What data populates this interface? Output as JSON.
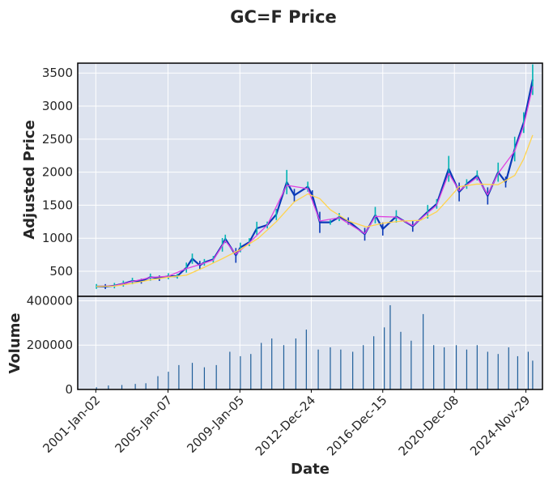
{
  "chart_data": {
    "type": "candlestick",
    "title": "GC=F Price",
    "xlabel": "Date",
    "price_panel": {
      "ylabel": "Adjusted Price",
      "yticks": [
        500,
        1000,
        1500,
        2000,
        2500,
        3000,
        3500
      ],
      "ylim": [
        120,
        3650
      ],
      "grid": true,
      "series": [
        {
          "kind": "candles",
          "color_up": "#00b3b3",
          "color_down": "#0b3ab8",
          "points": [
            [
              "2001-01",
              270
            ],
            [
              "2001-07",
              268
            ],
            [
              "2002-01",
              282
            ],
            [
              "2002-07",
              312
            ],
            [
              "2003-01",
              352
            ],
            [
              "2003-07",
              350
            ],
            [
              "2004-01",
              410
            ],
            [
              "2004-07",
              395
            ],
            [
              "2005-01",
              425
            ],
            [
              "2005-07",
              425
            ],
            [
              "2006-01",
              555
            ],
            [
              "2006-05",
              690
            ],
            [
              "2006-10",
              590
            ],
            [
              "2007-01",
              635
            ],
            [
              "2007-07",
              680
            ],
            [
              "2008-01",
              900
            ],
            [
              "2008-03",
              990
            ],
            [
              "2008-10",
              740
            ],
            [
              "2009-01",
              860
            ],
            [
              "2009-07",
              940
            ],
            [
              "2009-12",
              1150
            ],
            [
              "2010-07",
              1200
            ],
            [
              "2011-01",
              1360
            ],
            [
              "2011-08",
              1850
            ],
            [
              "2012-01",
              1650
            ],
            [
              "2012-10",
              1780
            ],
            [
              "2013-01",
              1650
            ],
            [
              "2013-06",
              1240
            ],
            [
              "2014-01",
              1240
            ],
            [
              "2014-07",
              1320
            ],
            [
              "2015-01",
              1260
            ],
            [
              "2015-12",
              1060
            ],
            [
              "2016-07",
              1350
            ],
            [
              "2016-12",
              1140
            ],
            [
              "2017-09",
              1330
            ],
            [
              "2018-08",
              1180
            ],
            [
              "2019-06",
              1400
            ],
            [
              "2019-12",
              1520
            ],
            [
              "2020-08",
              2050
            ],
            [
              "2021-03",
              1700
            ],
            [
              "2021-08",
              1820
            ],
            [
              "2022-03",
              1950
            ],
            [
              "2022-10",
              1640
            ],
            [
              "2023-05",
              2000
            ],
            [
              "2023-10",
              1850
            ],
            [
              "2024-04",
              2350
            ],
            [
              "2024-10",
              2750
            ],
            [
              "2025-04",
              3400
            ]
          ]
        },
        {
          "kind": "line",
          "name": "short moving average",
          "color": "#e040e0",
          "points": [
            [
              "2001-01",
              270
            ],
            [
              "2002-01",
              280
            ],
            [
              "2003-01",
              345
            ],
            [
              "2004-01",
              405
            ],
            [
              "2005-01",
              425
            ],
            [
              "2006-01",
              540
            ],
            [
              "2006-10",
              600
            ],
            [
              "2007-07",
              670
            ],
            [
              "2008-03",
              960
            ],
            [
              "2008-10",
              760
            ],
            [
              "2009-07",
              930
            ],
            [
              "2010-07",
              1200
            ],
            [
              "2011-08",
              1800
            ],
            [
              "2012-10",
              1750
            ],
            [
              "2013-06",
              1260
            ],
            [
              "2014-07",
              1310
            ],
            [
              "2015-12",
              1070
            ],
            [
              "2016-07",
              1330
            ],
            [
              "2017-09",
              1320
            ],
            [
              "2018-08",
              1190
            ],
            [
              "2019-12",
              1500
            ],
            [
              "2020-08",
              1980
            ],
            [
              "2021-03",
              1720
            ],
            [
              "2022-03",
              1920
            ],
            [
              "2022-10",
              1660
            ],
            [
              "2023-05",
              1980
            ],
            [
              "2024-04",
              2320
            ],
            [
              "2024-10",
              2700
            ],
            [
              "2025-04",
              3300
            ]
          ]
        },
        {
          "kind": "line",
          "name": "long moving average",
          "color": "#ffd34d",
          "points": [
            [
              "2001-01",
              270
            ],
            [
              "2002-01",
              275
            ],
            [
              "2003-01",
              315
            ],
            [
              "2004-01",
              370
            ],
            [
              "2005-01",
              410
            ],
            [
              "2006-01",
              440
            ],
            [
              "2007-01",
              560
            ],
            [
              "2008-01",
              690
            ],
            [
              "2009-01",
              830
            ],
            [
              "2010-01",
              1000
            ],
            [
              "2011-01",
              1250
            ],
            [
              "2012-01",
              1550
            ],
            [
              "2012-10",
              1670
            ],
            [
              "2013-06",
              1600
            ],
            [
              "2014-01",
              1430
            ],
            [
              "2015-01",
              1260
            ],
            [
              "2016-01",
              1170
            ],
            [
              "2017-01",
              1230
            ],
            [
              "2018-01",
              1260
            ],
            [
              "2019-01",
              1270
            ],
            [
              "2019-12",
              1400
            ],
            [
              "2020-08",
              1600
            ],
            [
              "2021-03",
              1780
            ],
            [
              "2022-03",
              1820
            ],
            [
              "2023-05",
              1810
            ],
            [
              "2024-04",
              1950
            ],
            [
              "2024-10",
              2200
            ],
            [
              "2025-04",
              2560
            ]
          ]
        }
      ]
    },
    "volume_panel": {
      "ylabel": "Volume",
      "yticks": [
        0,
        200000,
        400000
      ],
      "ylim": [
        0,
        420000
      ],
      "grid": true,
      "bar_color": "#1f5e99",
      "bars": [
        [
          "2001-01",
          10000
        ],
        [
          "2001-09",
          18000
        ],
        [
          "2002-06",
          20000
        ],
        [
          "2003-03",
          25000
        ],
        [
          "2003-10",
          28000
        ],
        [
          "2004-06",
          60000
        ],
        [
          "2005-01",
          80000
        ],
        [
          "2005-08",
          110000
        ],
        [
          "2006-05",
          120000
        ],
        [
          "2007-01",
          100000
        ],
        [
          "2007-09",
          110000
        ],
        [
          "2008-06",
          170000
        ],
        [
          "2009-01",
          150000
        ],
        [
          "2009-08",
          160000
        ],
        [
          "2010-03",
          210000
        ],
        [
          "2010-10",
          230000
        ],
        [
          "2011-06",
          200000
        ],
        [
          "2012-02",
          230000
        ],
        [
          "2012-09",
          270000
        ],
        [
          "2013-05",
          180000
        ],
        [
          "2014-01",
          190000
        ],
        [
          "2014-08",
          180000
        ],
        [
          "2015-04",
          170000
        ],
        [
          "2015-11",
          200000
        ],
        [
          "2016-06",
          240000
        ],
        [
          "2017-01",
          280000
        ],
        [
          "2017-05",
          380000
        ],
        [
          "2017-12",
          260000
        ],
        [
          "2018-07",
          220000
        ],
        [
          "2019-03",
          340000
        ],
        [
          "2019-10",
          200000
        ],
        [
          "2020-05",
          190000
        ],
        [
          "2021-01",
          200000
        ],
        [
          "2021-08",
          180000
        ],
        [
          "2022-03",
          200000
        ],
        [
          "2022-10",
          170000
        ],
        [
          "2023-05",
          160000
        ],
        [
          "2023-12",
          190000
        ],
        [
          "2024-06",
          150000
        ],
        [
          "2025-01",
          170000
        ],
        [
          "2025-04",
          130000
        ]
      ]
    },
    "xticks": [
      "2001-Jan-02",
      "2005-Jan-07",
      "2009-Jan-05",
      "2012-Dec-24",
      "2016-Dec-15",
      "2020-Dec-08",
      "2024-Nov-29"
    ],
    "x_range": [
      "2000-01-01",
      "2025-10-31"
    ],
    "plot_background": "#dde3ef",
    "grid_color": "#ffffff"
  }
}
